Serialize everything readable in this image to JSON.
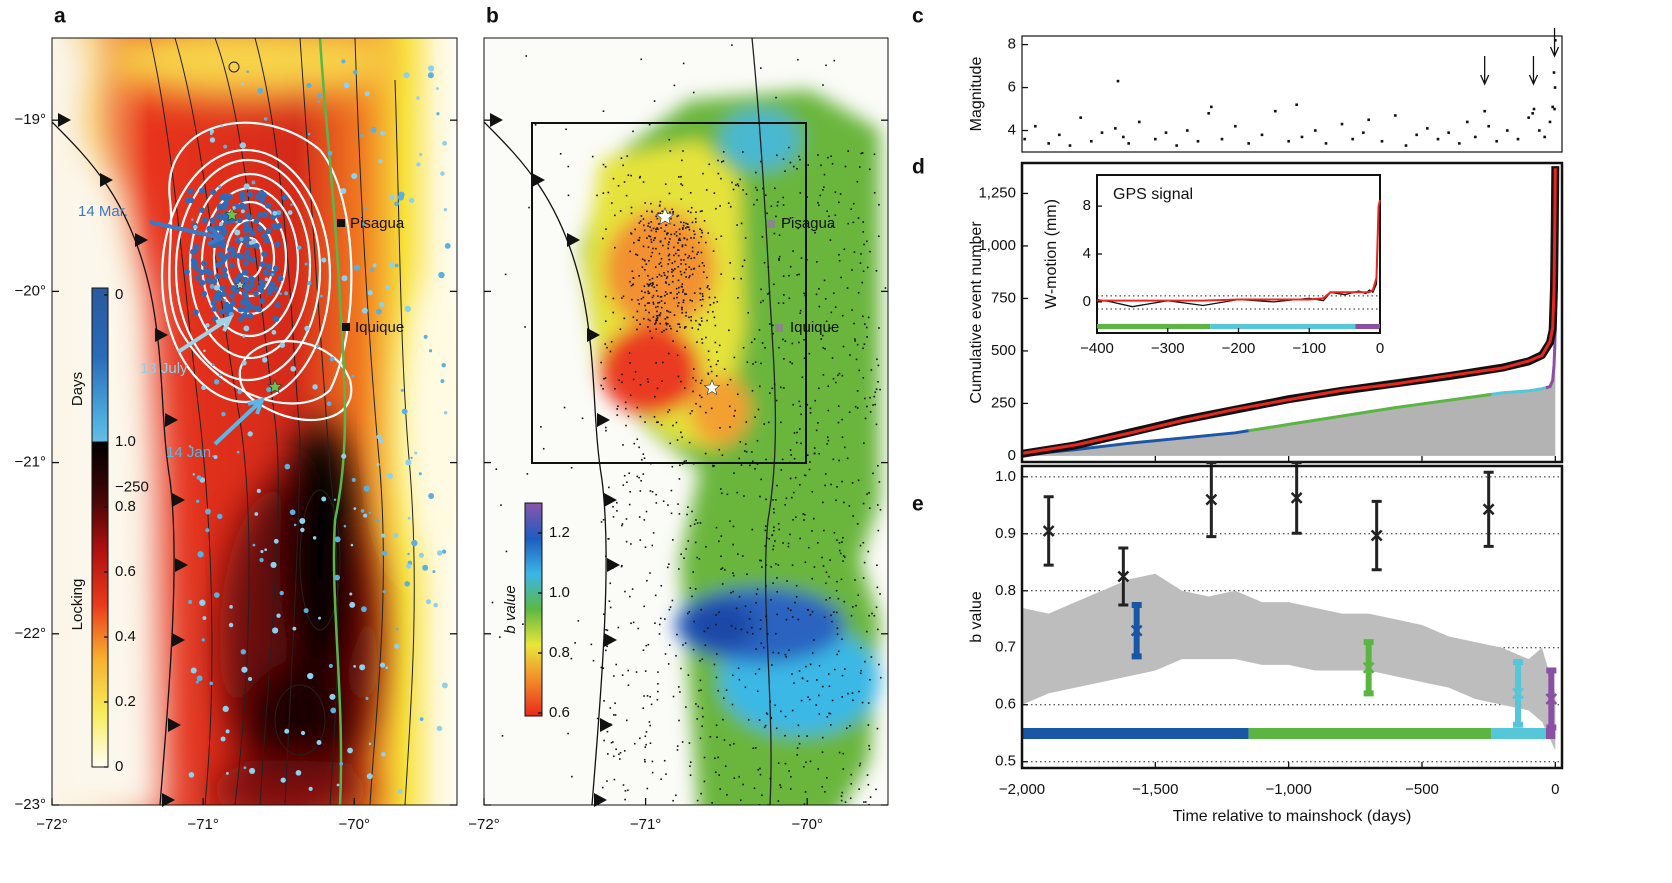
{
  "maps": [
    {
      "label": "a",
      "xlim": [
        -72,
        -69.32
      ],
      "ylim": [
        -23,
        -18.52
      ],
      "xticks": [
        {
          "value": -72,
          "label": "−72°"
        },
        {
          "value": -71,
          "label": "−71°"
        },
        {
          "value": -70,
          "label": "−70°"
        }
      ],
      "yticks": [
        {
          "value": -19,
          "label": "−19°"
        },
        {
          "value": -20,
          "label": "−20°"
        },
        {
          "value": -21,
          "label": "−21°"
        },
        {
          "value": -22,
          "label": "−22°"
        },
        {
          "value": -23,
          "label": "−23°"
        }
      ],
      "cities": [
        "Pisagua",
        "Iquique"
      ],
      "annotations": [
        "14 Mar.",
        "13 July",
        "14 Jan."
      ],
      "colorbars": [
        {
          "title": "Days",
          "lim": [
            -253,
            9
          ],
          "ticks": [
            0,
            {
              "value": -250,
              "label": "−250"
            }
          ],
          "colors": [
            "#a8dcea",
            "#4fb0e0",
            "#2a6ab8",
            "#2a5a9e"
          ]
        },
        {
          "title": "Locking",
          "lim": [
            0,
            1
          ],
          "ticks": [
            0,
            0.2,
            0.4,
            0.6,
            0.8,
            {
              "value": 1,
              "label": "1.0"
            }
          ],
          "colors": [
            "#fffef5",
            "#f7ec5a",
            "#f6b030",
            "#ea3a1c",
            "#b01010",
            "#400606",
            "#000000"
          ]
        }
      ]
    },
    {
      "label": "b",
      "xlim": [
        -72,
        -69.5
      ],
      "ylim": [
        -23,
        -18.52
      ],
      "xticks": [
        {
          "value": -72,
          "label": "−72°"
        },
        {
          "value": -71,
          "label": "−71°"
        },
        {
          "value": -70,
          "label": "−70°"
        }
      ],
      "cities": [
        "Pisagua",
        "Iquique"
      ],
      "colorbars": [
        {
          "title": "b value",
          "lim": [
            0.59,
            1.3
          ],
          "ticks": [
            0.6,
            0.8,
            {
              "value": 1,
              "label": "1.0"
            },
            1.2
          ],
          "colors": [
            "#e8291c",
            "#f28a2a",
            "#e9e63a",
            "#5cb843",
            "#3ab6e6",
            "#1f5cc0",
            "#8a55a8"
          ]
        }
      ]
    }
  ],
  "chart_data": [
    {
      "type": "scatter",
      "label": "c",
      "ylabel": "Magnitude",
      "xlim": [
        -2000,
        25
      ],
      "ylim": [
        3,
        8.4
      ],
      "yticks": [
        4,
        6,
        8
      ],
      "color": "#111111",
      "x": [
        -1990,
        -1950,
        -1900,
        -1860,
        -1820,
        -1780,
        -1740,
        -1700,
        -1650,
        -1640,
        -1620,
        -1600,
        -1560,
        -1500,
        -1460,
        -1420,
        -1380,
        -1340,
        -1300,
        -1290,
        -1250,
        -1200,
        -1150,
        -1100,
        -1050,
        -1000,
        -970,
        -950,
        -900,
        -860,
        -800,
        -760,
        -720,
        -700,
        -650,
        -600,
        -560,
        -520,
        -480,
        -440,
        -400,
        -360,
        -330,
        -300,
        -265,
        -250,
        -220,
        -180,
        -140,
        -100,
        -85,
        -80,
        -60,
        -40,
        -20,
        -10,
        -5,
        -3,
        -1,
        0
      ],
      "values": [
        3.6,
        4.2,
        3.4,
        3.8,
        3.3,
        4.6,
        3.5,
        3.9,
        4.1,
        6.3,
        3.7,
        3.4,
        4.4,
        3.6,
        3.9,
        3.3,
        4.0,
        3.5,
        4.8,
        5.1,
        3.6,
        4.2,
        3.4,
        3.8,
        4.9,
        3.5,
        5.2,
        3.7,
        4.0,
        3.4,
        4.3,
        3.6,
        3.9,
        4.5,
        3.5,
        4.7,
        3.3,
        3.8,
        4.1,
        3.6,
        3.9,
        3.4,
        4.4,
        3.7,
        4.9,
        4.2,
        3.5,
        4.0,
        3.6,
        4.6,
        4.8,
        5.0,
        4.0,
        3.7,
        4.4,
        5.1,
        6.7,
        5.0,
        6.0,
        8.2
      ],
      "arrows": [
        -265,
        -82,
        -3
      ]
    },
    {
      "type": "cumulative",
      "label": "d",
      "ylabel": "Cumulative event number",
      "xlim": [
        -2000,
        25
      ],
      "ylim": [
        -29,
        1395
      ],
      "yticks": [
        0,
        250,
        500,
        750,
        {
          "value": 1000,
          "label": "1,000"
        },
        {
          "value": 1250,
          "label": "1,250"
        }
      ],
      "x": [
        -2000,
        -1800,
        -1600,
        -1400,
        -1200,
        -1000,
        -800,
        -600,
        -400,
        -200,
        -100,
        -50,
        -20,
        -10,
        -5,
        -2,
        0
      ],
      "series": [
        {
          "color": "#111111",
          "values": [
            10,
            50,
            110,
            170,
            220,
            270,
            310,
            345,
            380,
            420,
            450,
            480,
            540,
            600,
            800,
            1100,
            1380
          ]
        },
        {
          "color": "#e8261e",
          "values": [
            12,
            52,
            108,
            168,
            222,
            268,
            312,
            343,
            382,
            418,
            452,
            478,
            545,
            610,
            790,
            1090,
            1370
          ]
        },
        {
          "color": "#b3b3b3",
          "values": [
            5,
            30,
            60,
            85,
            110,
            150,
            190,
            230,
            265,
            300,
            310,
            320,
            330,
            360,
            430,
            520,
            640
          ]
        }
      ],
      "inset": {
        "title": "GPS signal",
        "ylabel": "W-motion (mm)",
        "xlim": [
          -400,
          0
        ],
        "ylim": [
          -2.6,
          10.6
        ],
        "xticks": [
          {
            "value": -400,
            "label": "−400"
          },
          {
            "value": -300,
            "label": "−300"
          },
          {
            "value": -200,
            "label": "−200"
          },
          {
            "value": -100,
            "label": "−100"
          },
          0
        ],
        "yticks": [
          0,
          4,
          8
        ],
        "hlines": [
          0.5,
          -0.6
        ],
        "x": [
          -400,
          -380,
          -350,
          -300,
          -250,
          -200,
          -150,
          -100,
          -80,
          -70,
          -50,
          -30,
          -20,
          -15,
          -10,
          -5,
          -2,
          0
        ],
        "series": [
          {
            "color": "#111111",
            "values": [
              0.2,
              0,
              -0.4,
              0.1,
              -0.3,
              0.2,
              0,
              0.3,
              0.1,
              0.8,
              0.6,
              0.9,
              0.7,
              1,
              0.8,
              1.5,
              7.5,
              8.5
            ]
          },
          {
            "color": "#e8261e",
            "values": [
              0.1,
              0.1,
              0.1,
              0.1,
              0.1,
              0.2,
              0.2,
              0.2,
              0.3,
              0.8,
              0.8,
              0.8,
              0.8,
              0.8,
              1.0,
              2,
              8,
              8.5
            ]
          }
        ]
      }
    },
    {
      "type": "errorbar",
      "label": "e",
      "ylabel": "b value",
      "xlabel": "Time relative to mainshock (days)",
      "xlim": [
        -2000,
        25
      ],
      "ylim": [
        0.489,
        1.019
      ],
      "grid": true,
      "xticks": [
        {
          "value": -2000,
          "label": "−2,000"
        },
        {
          "value": -1500,
          "label": "−1,500"
        },
        {
          "value": -1000,
          "label": "−1,000"
        },
        {
          "value": -500,
          "label": "−500"
        },
        0
      ],
      "yticks": [
        0.5,
        0.6,
        0.7,
        0.8,
        0.9,
        {
          "value": 1,
          "label": "1.0"
        }
      ],
      "periods": [
        {
          "from": -2000,
          "to": -1150,
          "color": "#1a56a6"
        },
        {
          "from": -1150,
          "to": -240,
          "color": "#5bb543"
        },
        {
          "from": -240,
          "to": -35,
          "color": "#56c6d9"
        },
        {
          "from": -35,
          "to": 0,
          "color": "#8b4fa3"
        }
      ],
      "band": {
        "color": "#bdbdbd",
        "x": [
          -2000,
          -1900,
          -1800,
          -1700,
          -1600,
          -1500,
          -1400,
          -1300,
          -1200,
          -1100,
          -1000,
          -900,
          -800,
          -700,
          -600,
          -500,
          -400,
          -300,
          -200,
          -100,
          -50,
          0
        ],
        "upper": [
          0.77,
          0.76,
          0.78,
          0.8,
          0.82,
          0.83,
          0.8,
          0.79,
          0.8,
          0.78,
          0.78,
          0.77,
          0.76,
          0.76,
          0.75,
          0.74,
          0.72,
          0.71,
          0.7,
          0.68,
          0.7,
          0.62
        ],
        "lower": [
          0.6,
          0.62,
          0.63,
          0.64,
          0.65,
          0.66,
          0.68,
          0.68,
          0.68,
          0.67,
          0.67,
          0.66,
          0.66,
          0.66,
          0.65,
          0.64,
          0.63,
          0.61,
          0.6,
          0.59,
          0.57,
          0.52
        ]
      },
      "series": [
        {
          "color": "#222222",
          "x": [
            -1900,
            -1620,
            -1290,
            -970,
            -670,
            -250
          ],
          "values": [
            0.905,
            0.825,
            0.96,
            0.963,
            0.897,
            0.943
          ],
          "errors": [
            0.06,
            0.05,
            0.065,
            0.062,
            0.06,
            0.065
          ]
        },
        {
          "colors": [
            "#1a56a6",
            "#5bb543",
            "#56c6d9",
            "#8b4fa3"
          ],
          "x": [
            -1570,
            -700,
            -140,
            -15
          ],
          "values": [
            0.73,
            0.665,
            0.62,
            0.61
          ],
          "errors": [
            0.045,
            0.045,
            0.055,
            0.05
          ]
        }
      ]
    }
  ]
}
